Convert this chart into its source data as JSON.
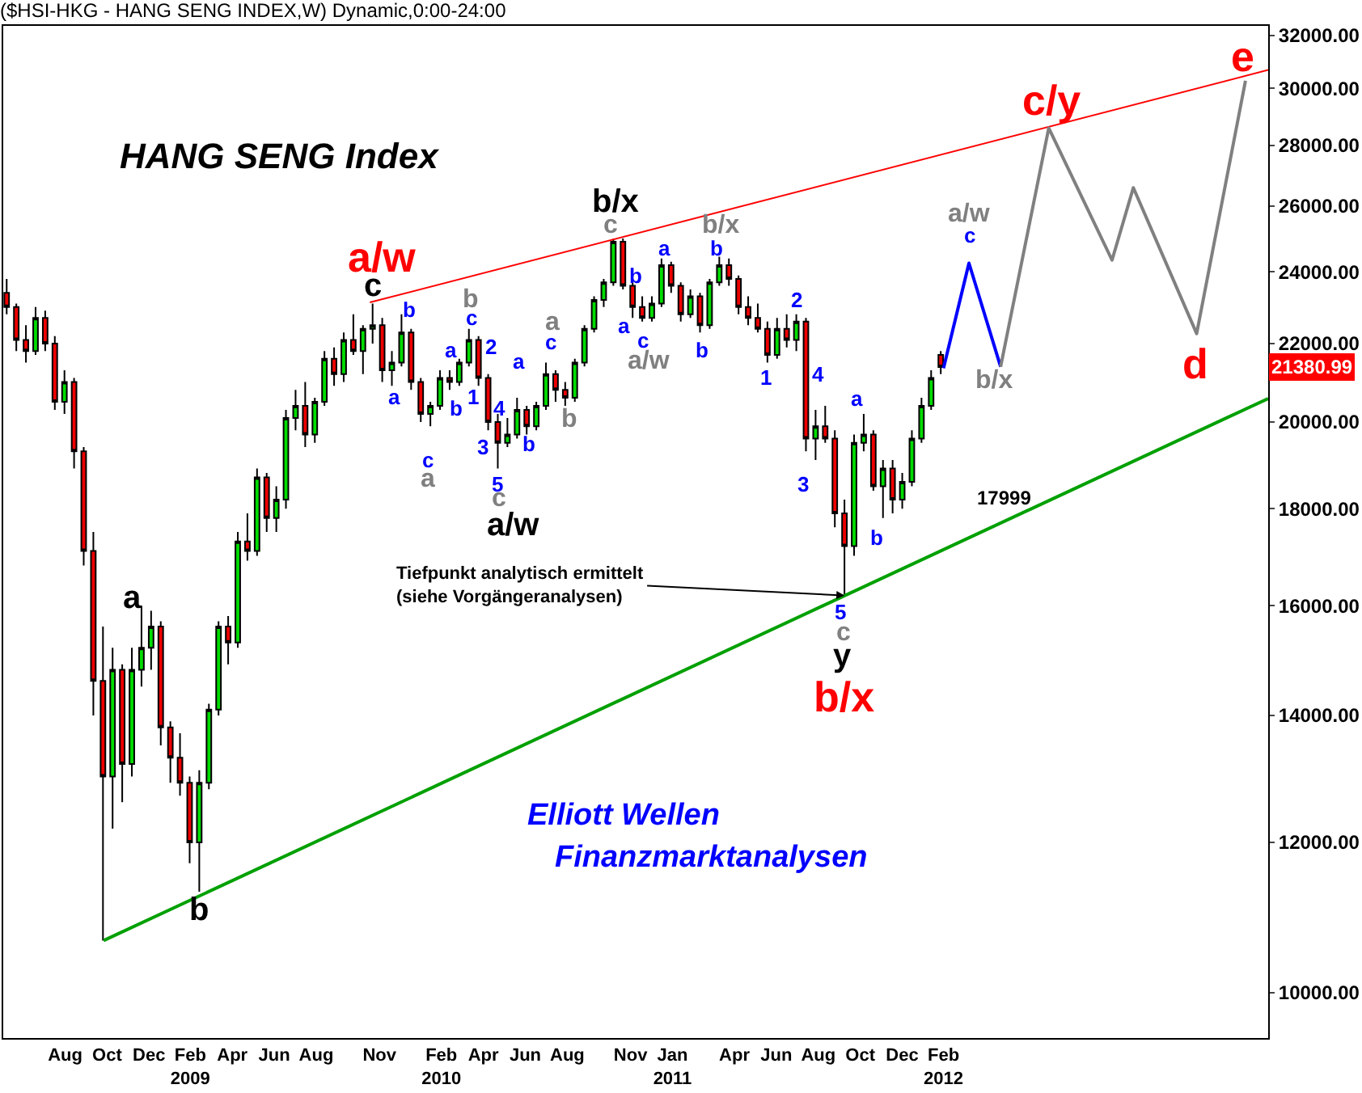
{
  "chart_data": {
    "type": "candlestick",
    "title": "($HSI-HKG - HANG SENG INDEX,W) Dynamic,0:00-24:00",
    "subtitle": "HANG SENG Index",
    "log": true,
    "xlim": [
      "2008-05-28",
      "2013-06-10"
    ],
    "ylim": [
      9460,
      32370
    ],
    "xticks": [
      {
        "value": "2008-08-26",
        "label": "Aug"
      },
      {
        "value": "2008-10-26",
        "label": "Oct"
      },
      {
        "value": "2008-12-26",
        "label": "Dec"
      },
      {
        "value": "2009-02-24",
        "label": "Feb\n2009"
      },
      {
        "value": "2009-04-26",
        "label": "Apr"
      },
      {
        "value": "2009-06-26",
        "label": "Jun"
      },
      {
        "value": "2009-08-26",
        "label": "Aug"
      },
      {
        "value": "2009-11-26",
        "label": "Nov"
      },
      {
        "value": "2010-02-24",
        "label": "Feb\n2010"
      },
      {
        "value": "2010-04-26",
        "label": "Apr"
      },
      {
        "value": "2010-06-26",
        "label": "Jun"
      },
      {
        "value": "2010-08-26",
        "label": "Aug"
      },
      {
        "value": "2010-11-26",
        "label": "Nov"
      },
      {
        "value": "2011-01-26",
        "label": "Jan\n2011"
      },
      {
        "value": "2011-04-26",
        "label": "Apr"
      },
      {
        "value": "2011-06-26",
        "label": "Jun"
      },
      {
        "value": "2011-08-26",
        "label": "Aug"
      },
      {
        "value": "2011-10-26",
        "label": "Oct"
      },
      {
        "value": "2011-12-26",
        "label": "Dec"
      },
      {
        "value": "2012-02-24",
        "label": "Feb\n2012"
      }
    ],
    "yticks": [
      {
        "value": 10000,
        "label": "10000.00"
      },
      {
        "value": 12000,
        "label": "12000.00"
      },
      {
        "value": 14000,
        "label": "14000.00"
      },
      {
        "value": 16000,
        "label": "16000.00"
      },
      {
        "value": 18000,
        "label": "18000.00"
      },
      {
        "value": 20000,
        "label": "20000.00"
      },
      {
        "value": 22000,
        "label": "22000.00"
      },
      {
        "value": 24000,
        "label": "24000.00"
      },
      {
        "value": 26000,
        "label": "26000.00"
      },
      {
        "value": 28000,
        "label": "28000.00"
      },
      {
        "value": 30000,
        "label": "30000.00"
      },
      {
        "value": 32000,
        "label": "32000.00"
      }
    ],
    "series": [
      {
        "type": "line",
        "color": "#ff0000",
        "x": [
          "2009-11-12",
          "2013-06-10"
        ],
        "values": [
          23130,
          30680
        ]
      },
      {
        "type": "line",
        "color": "#00a000",
        "x": [
          "2008-10-21",
          "2013-06-10"
        ],
        "values": [
          10650,
          20580
        ]
      },
      {
        "type": "line",
        "color": "#0000ff",
        "x": [
          "2012-02-24",
          "2012-04-01",
          "2012-05-17"
        ],
        "values": [
          21350,
          24260,
          21390
        ]
      },
      {
        "type": "line",
        "color": "#808080",
        "x": [
          "2012-05-17",
          "2012-07-26",
          "2012-10-26",
          "2012-11-26",
          "2013-02-26",
          "2013-05-08"
        ],
        "values": [
          21390,
          28590,
          24350,
          26590,
          22270,
          30280
        ]
      },
      {
        "x": [
          "2008-06-02",
          "2008-06-16",
          "2008-06-30",
          "2008-07-14",
          "2008-07-28",
          "2008-08-11",
          "2008-08-25",
          "2008-09-08",
          "2008-09-22",
          "2008-10-06",
          "2008-10-20",
          "2008-11-03",
          "2008-11-17",
          "2008-12-01",
          "2008-12-15",
          "2008-12-29",
          "2009-01-12",
          "2009-01-26",
          "2009-02-09",
          "2009-02-23",
          "2009-03-09",
          "2009-03-23",
          "2009-04-06",
          "2009-04-20",
          "2009-05-04",
          "2009-05-18",
          "2009-06-01",
          "2009-06-15",
          "2009-06-29",
          "2009-07-13",
          "2009-07-27",
          "2009-08-10",
          "2009-08-24",
          "2009-09-07",
          "2009-09-21",
          "2009-10-05",
          "2009-10-19",
          "2009-11-02",
          "2009-11-16",
          "2009-11-30",
          "2009-12-14",
          "2009-12-28",
          "2010-01-11",
          "2010-01-25",
          "2010-02-08",
          "2010-02-22",
          "2010-03-08",
          "2010-03-22",
          "2010-04-05",
          "2010-04-19",
          "2010-05-03",
          "2010-05-17",
          "2010-05-31",
          "2010-06-14",
          "2010-06-28",
          "2010-07-12",
          "2010-07-26",
          "2010-08-09",
          "2010-08-23",
          "2010-09-06",
          "2010-09-20",
          "2010-10-04",
          "2010-10-18",
          "2010-11-01",
          "2010-11-15",
          "2010-11-29",
          "2010-12-13",
          "2010-12-27",
          "2011-01-10",
          "2011-01-24",
          "2011-02-07",
          "2011-02-21",
          "2011-03-07",
          "2011-03-21",
          "2011-04-04",
          "2011-04-18",
          "2011-05-02",
          "2011-05-16",
          "2011-05-30",
          "2011-06-13",
          "2011-06-27",
          "2011-07-11",
          "2011-07-25",
          "2011-08-08",
          "2011-08-22",
          "2011-09-05",
          "2011-09-19",
          "2011-10-03",
          "2011-10-17",
          "2011-10-31",
          "2011-11-14",
          "2011-11-28",
          "2011-12-12",
          "2011-12-26",
          "2012-01-09",
          "2012-01-23",
          "2012-02-06",
          "2012-02-20"
        ],
        "ohlc": [
          [
            23400,
            23800,
            22800,
            23000
          ],
          [
            23000,
            23100,
            21800,
            22100
          ],
          [
            22100,
            22500,
            21500,
            21800
          ],
          [
            21800,
            23000,
            21700,
            22700
          ],
          [
            22700,
            22900,
            21800,
            22000
          ],
          [
            22000,
            22200,
            20300,
            20500
          ],
          [
            20500,
            21300,
            20200,
            21000
          ],
          [
            21000,
            21100,
            18900,
            19300
          ],
          [
            19300,
            19400,
            16800,
            17100
          ],
          [
            17100,
            17500,
            14000,
            14600
          ],
          [
            14600,
            15600,
            10650,
            13000
          ],
          [
            13000,
            15200,
            12200,
            14800
          ],
          [
            14800,
            14900,
            12600,
            13200
          ],
          [
            13200,
            15200,
            13000,
            14800
          ],
          [
            14800,
            16000,
            14500,
            15200
          ],
          [
            15200,
            15900,
            14800,
            15600
          ],
          [
            15600,
            15700,
            13500,
            13800
          ],
          [
            13800,
            13900,
            12900,
            13300
          ],
          [
            13300,
            13700,
            12700,
            12900
          ],
          [
            12900,
            13000,
            11700,
            12000
          ],
          [
            12000,
            13100,
            11300,
            12900
          ],
          [
            12900,
            14200,
            12800,
            14100
          ],
          [
            14100,
            15700,
            14000,
            15600
          ],
          [
            15600,
            15800,
            14900,
            15300
          ],
          [
            15300,
            17500,
            15200,
            17300
          ],
          [
            17300,
            17900,
            16900,
            17100
          ],
          [
            17100,
            18900,
            17000,
            18700
          ],
          [
            18700,
            18800,
            17500,
            17800
          ],
          [
            17800,
            18500,
            17500,
            18200
          ],
          [
            18200,
            20300,
            18000,
            20100
          ],
          [
            20100,
            20800,
            19800,
            20400
          ],
          [
            20400,
            21000,
            19400,
            19700
          ],
          [
            19700,
            20600,
            19500,
            20500
          ],
          [
            20500,
            21800,
            20400,
            21600
          ],
          [
            21600,
            21900,
            20900,
            21200
          ],
          [
            21200,
            22300,
            21000,
            22100
          ],
          [
            22100,
            22800,
            21700,
            21800
          ],
          [
            21800,
            22500,
            21200,
            22400
          ],
          [
            22400,
            23100,
            22000,
            22500
          ],
          [
            22500,
            22700,
            21000,
            21300
          ],
          [
            21300,
            21800,
            20900,
            21500
          ],
          [
            21500,
            22800,
            21400,
            22300
          ],
          [
            22300,
            22400,
            20800,
            21000
          ],
          [
            21000,
            21100,
            20000,
            20200
          ],
          [
            20200,
            20500,
            19900,
            20400
          ],
          [
            20400,
            21300,
            20300,
            21100
          ],
          [
            21100,
            21300,
            20800,
            21000
          ],
          [
            21000,
            21600,
            20900,
            21500
          ],
          [
            21500,
            22400,
            21400,
            22100
          ],
          [
            22100,
            22200,
            20900,
            21100
          ],
          [
            21100,
            21200,
            19800,
            20000
          ],
          [
            20000,
            20200,
            18900,
            19500
          ],
          [
            19500,
            20100,
            19400,
            19700
          ],
          [
            19700,
            20600,
            19600,
            20300
          ],
          [
            20300,
            20400,
            19700,
            19900
          ],
          [
            19900,
            20500,
            19800,
            20400
          ],
          [
            20400,
            21500,
            20300,
            21200
          ],
          [
            21200,
            21300,
            20500,
            20800
          ],
          [
            20800,
            21000,
            20400,
            20600
          ],
          [
            20600,
            21600,
            20500,
            21500
          ],
          [
            21500,
            22500,
            21400,
            22400
          ],
          [
            22400,
            23300,
            22300,
            23200
          ],
          [
            23200,
            23800,
            23000,
            23700
          ],
          [
            23700,
            24990,
            23600,
            24900
          ],
          [
            24900,
            25000,
            23500,
            23600
          ],
          [
            23600,
            23800,
            22700,
            23000
          ],
          [
            23000,
            23300,
            22600,
            22700
          ],
          [
            22700,
            23300,
            22600,
            23100
          ],
          [
            23100,
            24400,
            23000,
            24200
          ],
          [
            24200,
            24300,
            23400,
            23600
          ],
          [
            23600,
            23700,
            22600,
            22800
          ],
          [
            22800,
            23500,
            22700,
            23300
          ],
          [
            23300,
            23400,
            22300,
            22500
          ],
          [
            22500,
            23800,
            22400,
            23700
          ],
          [
            23700,
            24450,
            23600,
            24200
          ],
          [
            24200,
            24400,
            23600,
            23800
          ],
          [
            23800,
            23900,
            22800,
            23000
          ],
          [
            23000,
            23300,
            22500,
            22700
          ],
          [
            22700,
            23100,
            22300,
            22400
          ],
          [
            22400,
            22600,
            21500,
            21700
          ],
          [
            21700,
            22700,
            21600,
            22400
          ],
          [
            22400,
            22800,
            21900,
            22100
          ],
          [
            22100,
            22800,
            21800,
            22600
          ],
          [
            22600,
            22700,
            19300,
            19600
          ],
          [
            19600,
            20300,
            19100,
            19900
          ],
          [
            19900,
            20400,
            19500,
            19600
          ],
          [
            19600,
            19800,
            17600,
            17900
          ],
          [
            17900,
            18200,
            16200,
            17200
          ],
          [
            17200,
            19700,
            17000,
            19500
          ],
          [
            19500,
            20200,
            19300,
            19700
          ],
          [
            19700,
            19800,
            18400,
            18500
          ],
          [
            18500,
            19100,
            17800,
            18900
          ],
          [
            18900,
            19100,
            17900,
            18200
          ],
          [
            18200,
            18800,
            18000,
            18600
          ],
          [
            18600,
            19800,
            18500,
            19600
          ],
          [
            19600,
            20600,
            19500,
            20400
          ],
          [
            20400,
            21300,
            20300,
            21100
          ],
          [
            21700,
            21800,
            21200,
            21380.99
          ]
        ]
      }
    ],
    "annotations": [
      "Elliott Wellen",
      "Finanzmarktanalysen",
      "21380.99",
      {
        "text": "Tiefpunkt analytisch ermittelt\n(siehe Vorgängeranalysen)",
        "x": "2011-10-03",
        "y": 16200
      },
      "17999",
      "a/w",
      "c/y",
      "e",
      "d",
      "b/x",
      "a",
      "b",
      "c",
      "b/x",
      "a/w",
      "y",
      "b",
      "a",
      "c",
      "a",
      "a",
      "b",
      "b",
      "c",
      "2",
      "1",
      "4",
      "3",
      "5",
      "c",
      "a",
      "b",
      "a",
      "c",
      "b",
      "c",
      "b",
      "a",
      "c",
      "a/w",
      "a",
      "b/x",
      "b",
      "b",
      "1",
      "2",
      "4",
      "3",
      "a",
      "b",
      "5",
      "c",
      "a/w",
      "c",
      "b/x"
    ]
  }
}
